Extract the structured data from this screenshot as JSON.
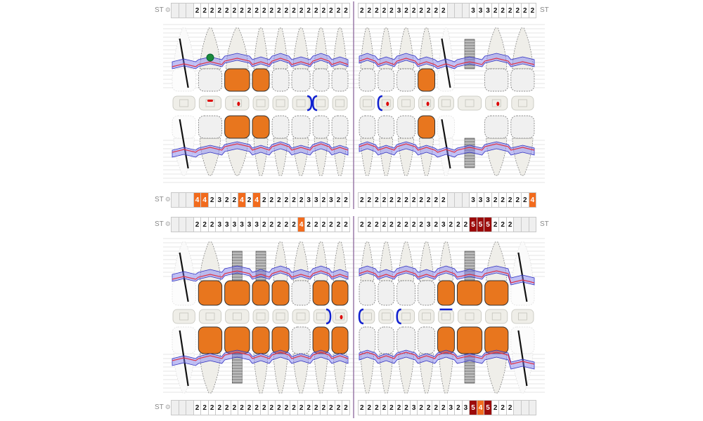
{
  "st_label": "ST",
  "colors": {
    "depth_4": "#f26b1d",
    "depth_5": "#9c0b0b",
    "crown": "#e8761e",
    "gum_band": "#7a7aef",
    "gingival_line": "#e0344a",
    "divider": "#9a7aa8"
  },
  "icons": {
    "settings": "gear-icon",
    "missing_tooth": "slash-line",
    "implant": "implant-screw",
    "note_marker": "green-plus-dot"
  },
  "rows": [
    {
      "name": "upper-buccal",
      "left": [
        "",
        "",
        "",
        "2",
        "2",
        "2",
        "2",
        "2",
        "2",
        "2",
        "2",
        "2",
        "2",
        "2",
        "2",
        "2",
        "2",
        "2",
        "2",
        "2",
        "2",
        "2",
        "2",
        "2"
      ],
      "right": [
        "2",
        "2",
        "2",
        "2",
        "2",
        "3",
        "2",
        "2",
        "2",
        "2",
        "2",
        "2",
        "",
        "",
        "",
        "3",
        "3",
        "3",
        "2",
        "2",
        "2",
        "2",
        "2",
        "2"
      ]
    },
    {
      "name": "upper-palatal",
      "left": [
        "",
        "",
        "",
        "4",
        "4",
        "2",
        "3",
        "2",
        "2",
        "4",
        "2",
        "4",
        "2",
        "2",
        "2",
        "2",
        "2",
        "2",
        "3",
        "3",
        "2",
        "3",
        "2",
        "2"
      ],
      "right": [
        "2",
        "2",
        "2",
        "2",
        "2",
        "2",
        "2",
        "2",
        "2",
        "2",
        "2",
        "2",
        "",
        "",
        "",
        "3",
        "3",
        "3",
        "2",
        "2",
        "2",
        "2",
        "2",
        "4"
      ]
    },
    {
      "name": "lower-lingual",
      "left": [
        "",
        "",
        "",
        "2",
        "2",
        "2",
        "3",
        "3",
        "3",
        "3",
        "3",
        "3",
        "2",
        "2",
        "2",
        "2",
        "2",
        "4",
        "2",
        "2",
        "2",
        "2",
        "2",
        "2"
      ],
      "right": [
        "2",
        "2",
        "2",
        "2",
        "2",
        "2",
        "2",
        "2",
        "2",
        "3",
        "2",
        "3",
        "2",
        "2",
        "2",
        "5",
        "5",
        "5",
        "2",
        "2",
        "2",
        "",
        "",
        ""
      ]
    },
    {
      "name": "lower-buccal",
      "left": [
        "",
        "",
        "",
        "2",
        "2",
        "2",
        "2",
        "2",
        "2",
        "2",
        "2",
        "2",
        "2",
        "2",
        "2",
        "2",
        "2",
        "2",
        "2",
        "2",
        "2",
        "2",
        "2",
        "2"
      ],
      "right": [
        "2",
        "2",
        "2",
        "2",
        "2",
        "2",
        "2",
        "3",
        "2",
        "2",
        "2",
        "2",
        "3",
        "2",
        "3",
        "5",
        "4",
        "5",
        "2",
        "2",
        "2",
        "",
        "",
        ""
      ]
    }
  ],
  "jaws": [
    {
      "name": "maxilla-view",
      "arch": "upper",
      "left": [
        "missing",
        "natural",
        "crown",
        "crown",
        "natural",
        "natural",
        "natural",
        "natural"
      ],
      "right": [
        "natural",
        "natural",
        "natural",
        "crown",
        "missing",
        "implant",
        "natural",
        "natural"
      ]
    },
    {
      "name": "maxilla-occlusal-lower",
      "arch": "lower",
      "left": [
        "missing",
        "natural",
        "crown",
        "crown",
        "natural",
        "natural",
        "natural",
        "natural"
      ],
      "right": [
        "natural",
        "natural",
        "natural",
        "crown",
        "missing",
        "implant",
        "natural",
        "natural"
      ]
    },
    {
      "name": "mandible-upper",
      "arch": "upper",
      "left": [
        "missing",
        "crown",
        "implant-crown",
        "implant-crown",
        "crown",
        "natural",
        "crown",
        "crown"
      ],
      "right": [
        "natural",
        "natural",
        "natural",
        "natural",
        "crown",
        "implant-crown",
        "crown",
        "missing"
      ]
    },
    {
      "name": "mandible-lower",
      "arch": "lower",
      "left": [
        "missing",
        "crown",
        "implant-crown",
        "crown",
        "crown",
        "natural",
        "crown",
        "crown"
      ],
      "right": [
        "natural",
        "natural",
        "natural",
        "natural",
        "crown",
        "implant-crown",
        "crown",
        "missing"
      ]
    }
  ],
  "annotations": [
    {
      "section": 0,
      "side": "left",
      "tooth": 1,
      "type": "green-dot"
    },
    {
      "section": 0,
      "side": "left",
      "tooth": 1,
      "type": "red-dash"
    },
    {
      "section": 0,
      "side": "left",
      "tooth": 2,
      "type": "red-dot"
    },
    {
      "section": 0,
      "side": "left",
      "tooth": 5,
      "type": "bracket-right"
    },
    {
      "section": 0,
      "side": "left",
      "tooth": 6,
      "type": "bracket-left"
    },
    {
      "section": 0,
      "side": "right",
      "tooth": 1,
      "type": "bracket-left"
    },
    {
      "section": 0,
      "side": "right",
      "tooth": 1,
      "type": "red-dot"
    },
    {
      "section": 0,
      "side": "right",
      "tooth": 3,
      "type": "red-dot"
    },
    {
      "section": 0,
      "side": "right",
      "tooth": 6,
      "type": "red-dot"
    },
    {
      "section": 1,
      "side": "left",
      "tooth": 6,
      "type": "bracket-right"
    },
    {
      "section": 1,
      "side": "left",
      "tooth": 7,
      "type": "red-dot"
    },
    {
      "section": 1,
      "side": "right",
      "tooth": 0,
      "type": "bracket-left"
    },
    {
      "section": 1,
      "side": "right",
      "tooth": 2,
      "type": "bracket-left"
    },
    {
      "section": 1,
      "side": "right",
      "tooth": 4,
      "type": "bracket-top"
    }
  ]
}
